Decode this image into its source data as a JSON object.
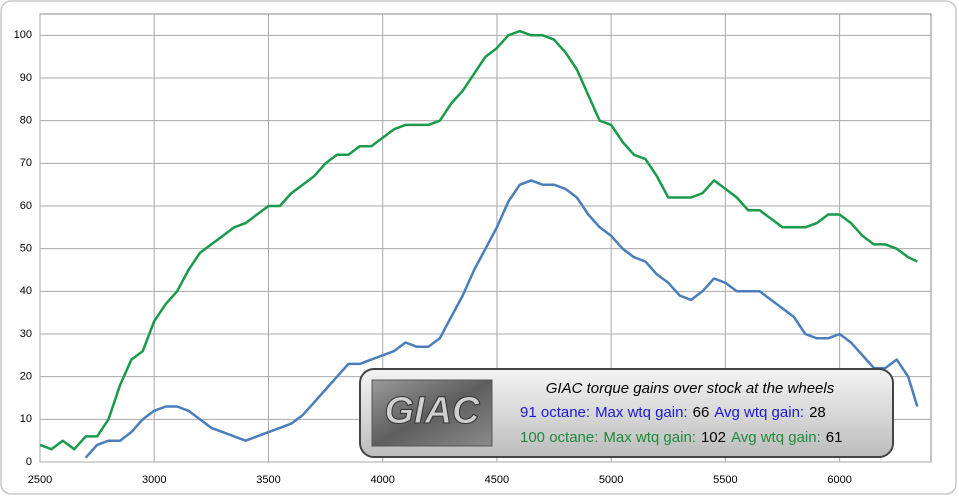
{
  "chart_data": {
    "type": "line",
    "x": [
      2500,
      2550,
      2600,
      2650,
      2700,
      2750,
      2800,
      2850,
      2900,
      2950,
      3000,
      3050,
      3100,
      3150,
      3200,
      3250,
      3300,
      3350,
      3400,
      3450,
      3500,
      3550,
      3600,
      3650,
      3700,
      3750,
      3800,
      3850,
      3900,
      3950,
      4000,
      4050,
      4100,
      4150,
      4200,
      4250,
      4300,
      4350,
      4400,
      4450,
      4500,
      4550,
      4600,
      4650,
      4700,
      4750,
      4800,
      4850,
      4900,
      4950,
      5000,
      5050,
      5100,
      5150,
      5200,
      5250,
      5300,
      5350,
      5400,
      5450,
      5500,
      5550,
      5600,
      5650,
      5700,
      5750,
      5800,
      5850,
      5900,
      5950,
      6000,
      6050,
      6100,
      6150,
      6200,
      6250,
      6300,
      6340
    ],
    "series": [
      {
        "name": "91 octane:",
        "color": "#4a7ebb",
        "legend_color": "#1a1ad8",
        "values": [
          null,
          null,
          null,
          null,
          1,
          4,
          5,
          5,
          7,
          10,
          12,
          13,
          13,
          12,
          10,
          8,
          7,
          6,
          5,
          6,
          7,
          8,
          9,
          11,
          14,
          17,
          20,
          23,
          23,
          24,
          25,
          26,
          28,
          27,
          27,
          29,
          34,
          39,
          45,
          50,
          55,
          61,
          65,
          66,
          65,
          65,
          64,
          62,
          58,
          55,
          53,
          50,
          48,
          47,
          44,
          42,
          39,
          38,
          40,
          43,
          42,
          40,
          40,
          40,
          38,
          36,
          34,
          30,
          29,
          29,
          30,
          28,
          25,
          22,
          22,
          24,
          20,
          13
        ],
        "max_label": "Max wtq gain:",
        "max": 66,
        "avg_label": "Avg wtq gain:",
        "avg": 28
      },
      {
        "name": "100 octane:",
        "color": "#1a9a4a",
        "legend_color": "#1f8a3a",
        "values": [
          4,
          3,
          5,
          3,
          6,
          6,
          10,
          18,
          24,
          26,
          33,
          37,
          40,
          45,
          49,
          51,
          53,
          55,
          56,
          58,
          60,
          60,
          63,
          65,
          67,
          70,
          72,
          72,
          74,
          74,
          76,
          78,
          79,
          79,
          79,
          80,
          84,
          87,
          91,
          95,
          97,
          100,
          101,
          100,
          100,
          99,
          96,
          92,
          86,
          80,
          79,
          75,
          72,
          71,
          67,
          62,
          62,
          62,
          63,
          66,
          64,
          62,
          59,
          59,
          57,
          55,
          55,
          55,
          56,
          58,
          58,
          56,
          53,
          51,
          51,
          50,
          48,
          47
        ],
        "max_label": "Max wtq gain:",
        "max": 102,
        "avg_label": "Avg wtq gain:",
        "avg": 61
      }
    ],
    "legend_title": "GIAC torque gains over stock at the wheels",
    "logo": "GIAC",
    "xlim": [
      2500,
      6400
    ],
    "ylim": [
      0,
      105
    ],
    "xticks": [
      2500,
      3000,
      3500,
      4000,
      4500,
      5000,
      5500,
      6000
    ],
    "yticks": [
      0,
      10,
      20,
      30,
      40,
      50,
      60,
      70,
      80,
      90,
      100
    ],
    "grid": true
  }
}
